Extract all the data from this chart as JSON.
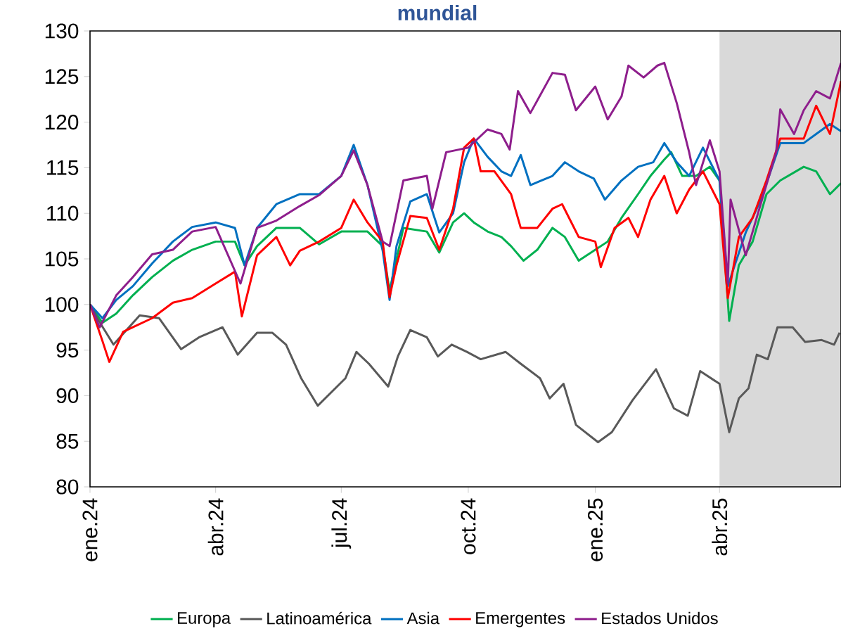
{
  "chart_data": {
    "type": "line",
    "title": "mundial",
    "legend": "bottom",
    "xlim": [
      "2024-01-01",
      "2025-06-28"
    ],
    "ylim": [
      80,
      130
    ],
    "yticks": [
      80,
      85,
      90,
      95,
      100,
      105,
      110,
      115,
      120,
      125,
      130
    ],
    "xticks": [
      {
        "value": "2024-01-01",
        "label": "ene.24"
      },
      {
        "value": "2024-04-01",
        "label": "abr.24"
      },
      {
        "value": "2024-07-01",
        "label": "jul.24"
      },
      {
        "value": "2024-10-01",
        "label": "oct.24"
      },
      {
        "value": "2025-01-01",
        "label": "ene.25"
      },
      {
        "value": "2025-04-01",
        "label": "abr.25"
      }
    ],
    "bands": [
      {
        "axis": "x",
        "from": "2025-04-01",
        "to": "2025-06-28",
        "color": "#d9d9d9"
      }
    ],
    "series": [
      {
        "name": "Europa",
        "color": "#00b050",
        "x": [
          "2024-01-01",
          "2024-01-10",
          "2024-01-20",
          "2024-02-01",
          "2024-02-15",
          "2024-03-01",
          "2024-03-15",
          "2024-04-01",
          "2024-04-15",
          "2024-04-22",
          "2024-05-01",
          "2024-05-15",
          "2024-06-01",
          "2024-06-15",
          "2024-07-01",
          "2024-07-20",
          "2024-07-31",
          "2024-08-05",
          "2024-08-15",
          "2024-09-01",
          "2024-09-10",
          "2024-09-20",
          "2024-09-28",
          "2024-10-05",
          "2024-10-15",
          "2024-10-25",
          "2024-11-01",
          "2024-11-10",
          "2024-11-20",
          "2024-12-01",
          "2024-12-10",
          "2024-12-20",
          "2025-01-01",
          "2025-01-10",
          "2025-01-20",
          "2025-02-01",
          "2025-02-10",
          "2025-02-20",
          "2025-02-25",
          "2025-03-05",
          "2025-03-15",
          "2025-03-25",
          "2025-04-01",
          "2025-04-08",
          "2025-04-15",
          "2025-04-25",
          "2025-05-05",
          "2025-05-15",
          "2025-06-01",
          "2025-06-10",
          "2025-06-20",
          "2025-06-28"
        ],
        "values": [
          100,
          98,
          99,
          101,
          103,
          104.8,
          106,
          106.9,
          106.9,
          104.3,
          106.4,
          108.4,
          108.4,
          106.6,
          108,
          108,
          106.4,
          101.5,
          108.4,
          108,
          105.7,
          109,
          110,
          109,
          108,
          107.4,
          106.4,
          104.8,
          106,
          108.4,
          107.4,
          104.8,
          106,
          106.9,
          109.5,
          112.1,
          114.1,
          115.9,
          116.7,
          114.1,
          114.1,
          115.1,
          113.6,
          98.2,
          104.3,
          106.9,
          112.1,
          113.6,
          115.1,
          114.6,
          112.1,
          113.3
        ]
      },
      {
        "name": "Latinoamérica",
        "color": "#595959",
        "x": [
          "2024-01-01",
          "2024-01-07",
          "2024-01-18",
          "2024-02-06",
          "2024-02-20",
          "2024-03-07",
          "2024-03-20",
          "2024-04-06",
          "2024-04-17",
          "2024-05-01",
          "2024-05-12",
          "2024-05-22",
          "2024-06-02",
          "2024-06-14",
          "2024-07-04",
          "2024-07-12",
          "2024-07-21",
          "2024-08-04",
          "2024-08-11",
          "2024-08-20",
          "2024-09-01",
          "2024-09-09",
          "2024-09-19",
          "2024-09-30",
          "2024-10-10",
          "2024-10-28",
          "2024-11-08",
          "2024-11-22",
          "2024-11-29",
          "2024-12-09",
          "2024-12-18",
          "2025-01-03",
          "2025-01-13",
          "2025-01-28",
          "2025-02-14",
          "2025-02-27",
          "2025-03-09",
          "2025-03-18",
          "2025-04-01",
          "2025-04-08",
          "2025-04-15",
          "2025-04-22",
          "2025-04-28",
          "2025-05-06",
          "2025-05-13",
          "2025-05-24",
          "2025-06-02",
          "2025-06-14",
          "2025-06-23",
          "2025-06-27"
        ],
        "values": [
          100,
          98.3,
          95.6,
          98.8,
          98.5,
          95.1,
          96.4,
          97.5,
          94.5,
          96.9,
          96.9,
          95.6,
          91.9,
          88.9,
          91.9,
          94.8,
          93.5,
          91,
          94.3,
          97.2,
          96.4,
          94.3,
          95.6,
          94.8,
          94,
          94.8,
          93.5,
          91.9,
          89.7,
          91.3,
          86.8,
          84.9,
          86,
          89.5,
          92.9,
          88.6,
          87.8,
          92.7,
          91.3,
          86,
          89.7,
          90.8,
          94.5,
          94,
          97.5,
          97.5,
          95.9,
          96.1,
          95.6,
          96.9
        ]
      },
      {
        "name": "Asia",
        "color": "#0070c0",
        "x": [
          "2024-01-01",
          "2024-01-10",
          "2024-01-20",
          "2024-02-01",
          "2024-02-15",
          "2024-03-01",
          "2024-03-15",
          "2024-04-01",
          "2024-04-15",
          "2024-04-22",
          "2024-05-01",
          "2024-05-15",
          "2024-06-01",
          "2024-06-15",
          "2024-07-01",
          "2024-07-10",
          "2024-07-20",
          "2024-07-31",
          "2024-08-05",
          "2024-08-10",
          "2024-08-20",
          "2024-09-01",
          "2024-09-10",
          "2024-09-20",
          "2024-09-28",
          "2024-10-05",
          "2024-10-15",
          "2024-10-25",
          "2024-11-01",
          "2024-11-08",
          "2024-11-15",
          "2024-12-01",
          "2024-12-10",
          "2024-12-20",
          "2024-12-31",
          "2025-01-08",
          "2025-01-20",
          "2025-02-01",
          "2025-02-12",
          "2025-02-20",
          "2025-03-01",
          "2025-03-10",
          "2025-03-20",
          "2025-04-01",
          "2025-04-07",
          "2025-04-12",
          "2025-04-20",
          "2025-05-01",
          "2025-05-15",
          "2025-06-01",
          "2025-06-10",
          "2025-06-20",
          "2025-06-28"
        ],
        "values": [
          100,
          98.5,
          100.5,
          102,
          104.5,
          106.9,
          108.5,
          109,
          108.4,
          104.3,
          108.4,
          111,
          112.1,
          112.1,
          114.1,
          117.5,
          113.1,
          105.9,
          100.5,
          106.4,
          111.3,
          112.1,
          107.9,
          110,
          115.6,
          118.2,
          116.2,
          114.6,
          114.1,
          116.4,
          113.1,
          114.1,
          115.6,
          114.6,
          113.8,
          111.5,
          113.6,
          115.1,
          115.6,
          117.7,
          115.6,
          114.1,
          117.2,
          113.6,
          102,
          104.3,
          107.9,
          111.5,
          117.7,
          117.7,
          118.7,
          119.8,
          119
        ]
      },
      {
        "name": "Emergentes",
        "color": "#ff0000",
        "x": [
          "2024-01-01",
          "2024-01-10",
          "2024-01-15",
          "2024-01-25",
          "2024-02-01",
          "2024-02-15",
          "2024-03-01",
          "2024-03-15",
          "2024-04-01",
          "2024-04-15",
          "2024-04-20",
          "2024-05-01",
          "2024-05-15",
          "2024-05-25",
          "2024-06-01",
          "2024-06-15",
          "2024-07-01",
          "2024-07-10",
          "2024-07-20",
          "2024-07-31",
          "2024-08-05",
          "2024-08-10",
          "2024-08-20",
          "2024-09-01",
          "2024-09-10",
          "2024-09-20",
          "2024-09-28",
          "2024-10-05",
          "2024-10-10",
          "2024-10-20",
          "2024-11-01",
          "2024-11-08",
          "2024-11-20",
          "2024-12-01",
          "2024-12-08",
          "2024-12-20",
          "2025-01-01",
          "2025-01-05",
          "2025-01-15",
          "2025-01-25",
          "2025-02-01",
          "2025-02-10",
          "2025-02-20",
          "2025-03-01",
          "2025-03-10",
          "2025-03-20",
          "2025-04-01",
          "2025-04-07",
          "2025-04-15",
          "2025-04-25",
          "2025-05-05",
          "2025-05-15",
          "2025-06-01",
          "2025-06-10",
          "2025-06-20",
          "2025-06-28"
        ],
        "values": [
          100,
          96,
          93.7,
          97,
          97.5,
          98.5,
          100.2,
          100.7,
          102.3,
          103.6,
          98.7,
          105.4,
          107.4,
          104.3,
          105.9,
          106.9,
          108.4,
          111.5,
          109,
          106.9,
          100.8,
          104.3,
          109.7,
          109.5,
          106,
          110.5,
          117.2,
          118.2,
          114.6,
          114.6,
          112.1,
          108.4,
          108.4,
          110.5,
          111,
          107.4,
          106.9,
          104.1,
          108.4,
          109.5,
          107.4,
          111.5,
          114.1,
          110,
          112.6,
          114.6,
          111,
          100.7,
          107.4,
          109.5,
          113.6,
          118.2,
          118.2,
          121.8,
          118.7,
          124.5
        ]
      },
      {
        "name": "Estados Unidos",
        "color": "#8e1e8c",
        "x": [
          "2024-01-01",
          "2024-01-08",
          "2024-01-20",
          "2024-02-01",
          "2024-02-15",
          "2024-03-01",
          "2024-03-15",
          "2024-04-01",
          "2024-04-19",
          "2024-05-01",
          "2024-05-15",
          "2024-06-01",
          "2024-06-15",
          "2024-07-01",
          "2024-07-10",
          "2024-07-20",
          "2024-07-31",
          "2024-08-05",
          "2024-08-15",
          "2024-09-01",
          "2024-09-05",
          "2024-09-15",
          "2024-10-01",
          "2024-10-15",
          "2024-10-25",
          "2024-10-31",
          "2024-11-06",
          "2024-11-15",
          "2024-12-01",
          "2024-12-10",
          "2024-12-18",
          "2025-01-01",
          "2025-01-10",
          "2025-01-20",
          "2025-01-25",
          "2025-02-05",
          "2025-02-15",
          "2025-02-20",
          "2025-03-01",
          "2025-03-10",
          "2025-03-15",
          "2025-03-25",
          "2025-04-01",
          "2025-04-07",
          "2025-04-09",
          "2025-04-20",
          "2025-05-01",
          "2025-05-12",
          "2025-05-15",
          "2025-05-25",
          "2025-06-01",
          "2025-06-10",
          "2025-06-20",
          "2025-06-28"
        ],
        "values": [
          100,
          97.5,
          101,
          103,
          105.5,
          106,
          108,
          108.5,
          102.3,
          108.4,
          109.2,
          110.8,
          112,
          114.1,
          116.9,
          113.1,
          106.9,
          106.4,
          113.6,
          114.1,
          110.5,
          116.7,
          117.2,
          119.2,
          118.7,
          117,
          123.4,
          121,
          125.4,
          125.2,
          121.3,
          123.9,
          120.3,
          122.8,
          126.2,
          124.9,
          126.2,
          126.5,
          122.1,
          116.7,
          113.1,
          118,
          114.6,
          102.3,
          111.5,
          105.4,
          111.1,
          116.7,
          121.4,
          118.7,
          121.3,
          123.4,
          122.6,
          126.5
        ]
      }
    ]
  }
}
